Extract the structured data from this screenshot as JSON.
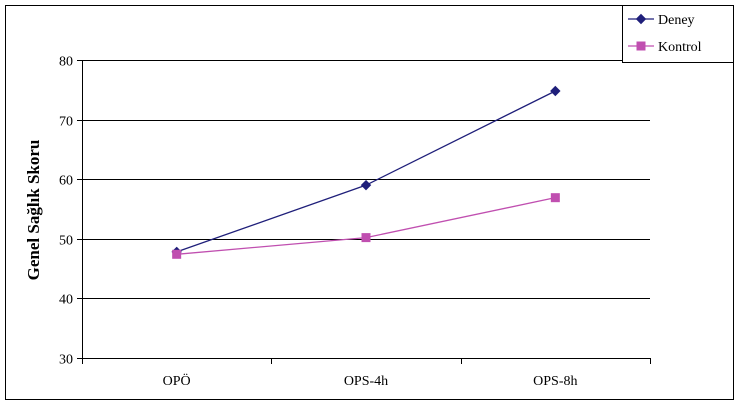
{
  "chart_data": {
    "type": "line",
    "title": "",
    "xlabel": "",
    "ylabel": "Genel Sağlık Skoru",
    "categories": [
      "OPÖ",
      "OPS-4h",
      "OPS-8h"
    ],
    "ylim": [
      30,
      80
    ],
    "yticks": [
      30,
      40,
      50,
      60,
      70,
      80
    ],
    "grid": true,
    "legend_position": "top-right",
    "series": [
      {
        "name": "Deney",
        "values": [
          47.8,
          59.0,
          74.8
        ],
        "color": "#1f1f7a",
        "marker": "diamond"
      },
      {
        "name": "Kontrol",
        "values": [
          47.4,
          50.2,
          56.9
        ],
        "color": "#c04fb0",
        "marker": "square"
      }
    ]
  }
}
